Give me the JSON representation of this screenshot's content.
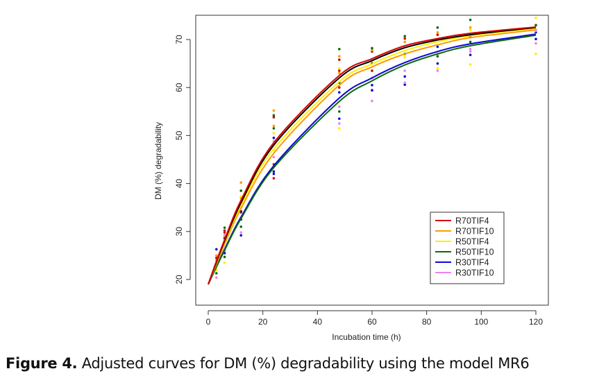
{
  "caption": {
    "label": "Figure 4.",
    "text": " Adjusted curves for DM (%) degradability using the model MR6"
  },
  "chart_data": {
    "type": "line",
    "title": "",
    "xlabel": "Incubation time (h)",
    "ylabel": "DM (%) degradability",
    "xlim": [
      -3,
      123
    ],
    "ylim": [
      17.5,
      75
    ],
    "xticks": [
      0,
      20,
      40,
      60,
      80,
      100,
      120
    ],
    "yticks": [
      20,
      30,
      40,
      50,
      60,
      70
    ],
    "legend_position": "center-right",
    "x": [
      0,
      3,
      6,
      12,
      24,
      48,
      60,
      72,
      84,
      96,
      120
    ],
    "series": [
      {
        "name": "R70TIF4",
        "color": "#d40000",
        "values": [
          19,
          23.8,
          28.3,
          36.5,
          48.5,
          62.5,
          66,
          68.7,
          70.2,
          71.3,
          72.6
        ],
        "points": [
          [
            3,
            24.5
          ],
          [
            6,
            29.8
          ],
          [
            6,
            30.2
          ],
          [
            12,
            36
          ],
          [
            12,
            34
          ],
          [
            24,
            53.8
          ],
          [
            24,
            41.1
          ],
          [
            24,
            44
          ],
          [
            48,
            65.8
          ],
          [
            48,
            63.5
          ],
          [
            48,
            60
          ],
          [
            60,
            67.5
          ],
          [
            60,
            63.5
          ],
          [
            72,
            70.2
          ],
          [
            84,
            71
          ],
          [
            96,
            70.5
          ],
          [
            120,
            73
          ]
        ]
      },
      {
        "name": "R70TIF10",
        "color": "#ff9a00",
        "values": [
          19,
          23.2,
          27.3,
          34.8,
          46.3,
          60.5,
          64.3,
          67,
          68.9,
          70.4,
          72
        ],
        "points": [
          [
            3,
            25
          ],
          [
            6,
            29
          ],
          [
            12,
            40.2
          ],
          [
            12,
            37
          ],
          [
            24,
            55.2
          ],
          [
            24,
            52
          ],
          [
            48,
            66.5
          ],
          [
            48,
            63
          ],
          [
            60,
            67.8
          ],
          [
            60,
            59.5
          ],
          [
            72,
            69.5
          ],
          [
            84,
            71.5
          ],
          [
            96,
            72.5
          ],
          [
            120,
            72
          ]
        ]
      },
      {
        "name": "R50TIF4",
        "color": "#ffee00",
        "values": [
          19,
          23.4,
          27.7,
          35.5,
          47.2,
          61.2,
          64.9,
          67.7,
          69.5,
          70.8,
          72.3
        ],
        "points": [
          [
            3,
            22
          ],
          [
            6,
            23.5
          ],
          [
            12,
            37.3
          ],
          [
            24,
            50.5
          ],
          [
            24,
            47
          ],
          [
            48,
            51.5
          ],
          [
            48,
            64
          ],
          [
            60,
            65.5
          ],
          [
            72,
            66.3
          ],
          [
            84,
            64
          ],
          [
            96,
            64.8
          ],
          [
            96,
            72
          ],
          [
            120,
            67
          ],
          [
            120,
            74.5
          ]
        ]
      },
      {
        "name": "R50TIF10",
        "color": "#0a6a0a",
        "values": [
          19,
          22.6,
          26.1,
          32.7,
          43.3,
          57.1,
          61.4,
          64.7,
          67,
          68.7,
          70.9
        ],
        "points": [
          [
            3,
            21.3
          ],
          [
            6,
            30.8
          ],
          [
            6,
            24.7
          ],
          [
            12,
            38.5
          ],
          [
            12,
            31
          ],
          [
            24,
            54.2
          ],
          [
            24,
            51.5
          ],
          [
            48,
            68
          ],
          [
            48,
            61
          ],
          [
            48,
            55
          ],
          [
            60,
            68.2
          ],
          [
            60,
            65
          ],
          [
            72,
            70.7
          ],
          [
            72,
            67
          ],
          [
            84,
            72.5
          ],
          [
            84,
            66.5
          ],
          [
            96,
            74.1
          ],
          [
            96,
            69.5
          ],
          [
            120,
            73
          ]
        ]
      },
      {
        "name": "R30TIF4",
        "color": "#0a0ad4",
        "values": [
          19,
          22.7,
          26.3,
          33,
          43.7,
          57.8,
          62,
          65.2,
          67.5,
          69.1,
          71.1
        ],
        "points": [
          [
            3,
            26.3
          ],
          [
            6,
            25.5
          ],
          [
            6,
            28.6
          ],
          [
            12,
            29.2
          ],
          [
            12,
            32.5
          ],
          [
            12,
            34.2
          ],
          [
            24,
            49.5
          ],
          [
            24,
            42.5
          ],
          [
            24,
            42
          ],
          [
            48,
            53.5
          ],
          [
            48,
            59
          ],
          [
            60,
            59.4
          ],
          [
            60,
            60.5
          ],
          [
            72,
            60.6
          ],
          [
            72,
            62.3
          ],
          [
            84,
            65
          ],
          [
            84,
            68.5
          ],
          [
            96,
            66.8
          ],
          [
            120,
            71.5
          ],
          [
            120,
            70.1
          ]
        ]
      },
      {
        "name": "R30TIF10",
        "color": "#ee82ee",
        "values": [
          19,
          22.7,
          26.3,
          33,
          43.7,
          57.8,
          62,
          65.2,
          67.5,
          69.1,
          71.2
        ],
        "points": [
          [
            3,
            20.4
          ],
          [
            3,
            24
          ],
          [
            6,
            26
          ],
          [
            6,
            29.3
          ],
          [
            12,
            29.8
          ],
          [
            12,
            35
          ],
          [
            24,
            45.5
          ],
          [
            24,
            48.8
          ],
          [
            48,
            52.5
          ],
          [
            48,
            56
          ],
          [
            60,
            57.2
          ],
          [
            60,
            62
          ],
          [
            72,
            61
          ],
          [
            72,
            63.5
          ],
          [
            84,
            63.5
          ],
          [
            84,
            67
          ],
          [
            96,
            67.5
          ],
          [
            96,
            68
          ],
          [
            120,
            69.2
          ],
          [
            120,
            71.8
          ]
        ]
      },
      {
        "name": "",
        "color": "#000000",
        "values": [
          19,
          23.6,
          28,
          36,
          48,
          62,
          65.6,
          68.3,
          69.9,
          71,
          72.5
        ],
        "points": []
      }
    ]
  }
}
